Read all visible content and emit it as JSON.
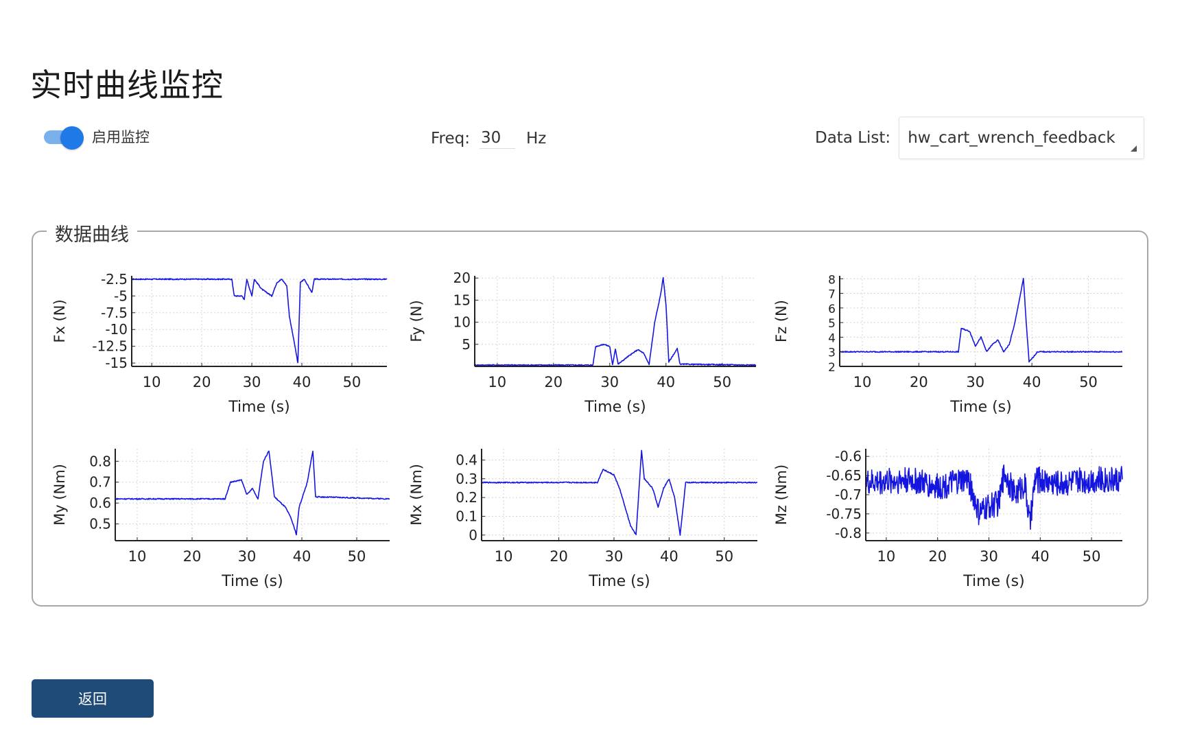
{
  "page": {
    "title": "实时曲线监控"
  },
  "controls": {
    "toggle": {
      "label": "启用监控",
      "on": true
    },
    "freq": {
      "label": "Freq:",
      "value": "30",
      "unit": "Hz"
    },
    "data_list": {
      "label": "Data List:",
      "selected": "hw_cart_wrench_feedback"
    }
  },
  "group": {
    "title": "数据曲线"
  },
  "footer": {
    "back_label": "返回"
  },
  "colors": {
    "accent": "#1f7ae8",
    "series": "#1515e0",
    "button": "#1f4b79"
  },
  "chart_data": [
    {
      "type": "line",
      "xlabel": "Time (s)",
      "ylabel": "Fx (N)",
      "xlim": [
        6,
        57
      ],
      "ylim": [
        -15.5,
        -2
      ],
      "xticks": [
        10,
        20,
        30,
        40,
        50
      ],
      "yticks": [
        -2.5,
        -5,
        -7.5,
        -10,
        -12.5,
        -15
      ],
      "ytick_labels": [
        "-2.5",
        "-5",
        "-7.5",
        "-10",
        "-12.5",
        "-15"
      ],
      "grid": true,
      "series": [
        {
          "values": [
            [
              6,
              -2.5
            ],
            [
              26,
              -2.5
            ],
            [
              26.5,
              -5
            ],
            [
              28,
              -5
            ],
            [
              28.5,
              -5.5
            ],
            [
              29,
              -2.5
            ],
            [
              30,
              -5
            ],
            [
              30.5,
              -2.5
            ],
            [
              32,
              -4
            ],
            [
              34,
              -5
            ],
            [
              35,
              -3
            ],
            [
              36,
              -2.5
            ],
            [
              37,
              -3.5
            ],
            [
              37.5,
              -8
            ],
            [
              38.5,
              -12
            ],
            [
              39.2,
              -15
            ],
            [
              39.7,
              -3
            ],
            [
              40.5,
              -2.5
            ],
            [
              42,
              -4.5
            ],
            [
              42.5,
              -2.5
            ],
            [
              57,
              -2.5
            ]
          ]
        }
      ]
    },
    {
      "type": "line",
      "xlabel": "Time (s)",
      "ylabel": "Fy (N)",
      "xlim": [
        6,
        56
      ],
      "ylim": [
        0,
        20.5
      ],
      "xticks": [
        10,
        20,
        30,
        40,
        50
      ],
      "yticks": [
        5,
        10,
        15,
        20
      ],
      "ytick_labels": [
        "5",
        "10",
        "15",
        "20"
      ],
      "grid": true,
      "series": [
        {
          "values": [
            [
              6,
              0.3
            ],
            [
              27,
              0.3
            ],
            [
              27.5,
              4.5
            ],
            [
              29,
              5
            ],
            [
              30,
              4.5
            ],
            [
              30.5,
              0.3
            ],
            [
              31,
              4
            ],
            [
              31.5,
              0.5
            ],
            [
              33,
              2
            ],
            [
              35,
              3.8
            ],
            [
              36,
              3
            ],
            [
              37,
              0.5
            ],
            [
              38,
              10
            ],
            [
              39,
              16
            ],
            [
              39.5,
              20
            ],
            [
              40,
              14
            ],
            [
              40.5,
              1
            ],
            [
              42,
              4
            ],
            [
              42.5,
              0.5
            ],
            [
              56,
              0.3
            ]
          ]
        }
      ]
    },
    {
      "type": "line",
      "xlabel": "Time (s)",
      "ylabel": "Fz (N)",
      "xlim": [
        6,
        56
      ],
      "ylim": [
        2,
        8.2
      ],
      "xticks": [
        10,
        20,
        30,
        40,
        50
      ],
      "yticks": [
        2,
        3,
        4,
        5,
        6,
        7,
        8
      ],
      "ytick_labels": [
        "2",
        "3",
        "4",
        "5",
        "6",
        "7",
        "8"
      ],
      "grid": true,
      "series": [
        {
          "values": [
            [
              6,
              3
            ],
            [
              27,
              3
            ],
            [
              27.5,
              4.6
            ],
            [
              29,
              4.4
            ],
            [
              30,
              3.4
            ],
            [
              31,
              4
            ],
            [
              32,
              3
            ],
            [
              33,
              3.5
            ],
            [
              34,
              3.8
            ],
            [
              35,
              3
            ],
            [
              36,
              3.5
            ],
            [
              37,
              5
            ],
            [
              38,
              7
            ],
            [
              38.5,
              8
            ],
            [
              39,
              5
            ],
            [
              39.5,
              2.3
            ],
            [
              41,
              3
            ],
            [
              56,
              3
            ]
          ]
        }
      ]
    },
    {
      "type": "line",
      "xlabel": "Time (s)",
      "ylabel": "My (Nm)",
      "xlim": [
        6,
        56
      ],
      "ylim": [
        0.42,
        0.86
      ],
      "xticks": [
        10,
        20,
        30,
        40,
        50
      ],
      "yticks": [
        0.5,
        0.6,
        0.7,
        0.8
      ],
      "ytick_labels": [
        "0.5",
        "0.6",
        "0.7",
        "0.8"
      ],
      "grid": true,
      "series": [
        {
          "values": [
            [
              6,
              0.62
            ],
            [
              26,
              0.62
            ],
            [
              27,
              0.7
            ],
            [
              29,
              0.71
            ],
            [
              30,
              0.64
            ],
            [
              31,
              0.67
            ],
            [
              32,
              0.62
            ],
            [
              33,
              0.8
            ],
            [
              34,
              0.85
            ],
            [
              35,
              0.63
            ],
            [
              37,
              0.58
            ],
            [
              38,
              0.53
            ],
            [
              39,
              0.45
            ],
            [
              39.5,
              0.58
            ],
            [
              41,
              0.7
            ],
            [
              42,
              0.85
            ],
            [
              42.5,
              0.63
            ],
            [
              56,
              0.62
            ]
          ]
        }
      ]
    },
    {
      "type": "line",
      "xlabel": "Time (s)",
      "ylabel": "Mx (Nm)",
      "xlim": [
        6,
        56
      ],
      "ylim": [
        -0.03,
        0.46
      ],
      "xticks": [
        10,
        20,
        30,
        40,
        50
      ],
      "yticks": [
        0,
        0.1,
        0.2,
        0.3,
        0.4
      ],
      "ytick_labels": [
        "0",
        "0.1",
        "0.2",
        "0.3",
        "0.4"
      ],
      "grid": true,
      "series": [
        {
          "values": [
            [
              6,
              0.28
            ],
            [
              27,
              0.28
            ],
            [
              28,
              0.35
            ],
            [
              30,
              0.32
            ],
            [
              31,
              0.25
            ],
            [
              32,
              0.15
            ],
            [
              33,
              0.05
            ],
            [
              34,
              0
            ],
            [
              35,
              0.45
            ],
            [
              35.5,
              0.3
            ],
            [
              37,
              0.25
            ],
            [
              38,
              0.15
            ],
            [
              39,
              0.25
            ],
            [
              40,
              0.3
            ],
            [
              41,
              0.2
            ],
            [
              42,
              0
            ],
            [
              43,
              0.28
            ],
            [
              56,
              0.28
            ]
          ]
        }
      ]
    },
    {
      "type": "line",
      "xlabel": "Time (s)",
      "ylabel": "Mz (Nm)",
      "xlim": [
        6,
        56
      ],
      "ylim": [
        -0.82,
        -0.58
      ],
      "xticks": [
        10,
        20,
        30,
        40,
        50
      ],
      "yticks": [
        -0.6,
        -0.65,
        -0.7,
        -0.75,
        -0.8
      ],
      "ytick_labels": [
        "-0.6",
        "-0.65",
        "-0.7",
        "-0.75",
        "-0.8"
      ],
      "grid": true,
      "series": [
        {
          "values": [
            [
              6,
              -0.67
            ],
            [
              14,
              -0.66
            ],
            [
              20,
              -0.68
            ],
            [
              26,
              -0.66
            ],
            [
              28,
              -0.75
            ],
            [
              30,
              -0.73
            ],
            [
              32,
              -0.72
            ],
            [
              33,
              -0.64
            ],
            [
              35,
              -0.7
            ],
            [
              37,
              -0.67
            ],
            [
              38,
              -0.78
            ],
            [
              39,
              -0.66
            ],
            [
              44,
              -0.67
            ],
            [
              50,
              -0.66
            ],
            [
              56,
              -0.66
            ]
          ]
        }
      ]
    }
  ]
}
